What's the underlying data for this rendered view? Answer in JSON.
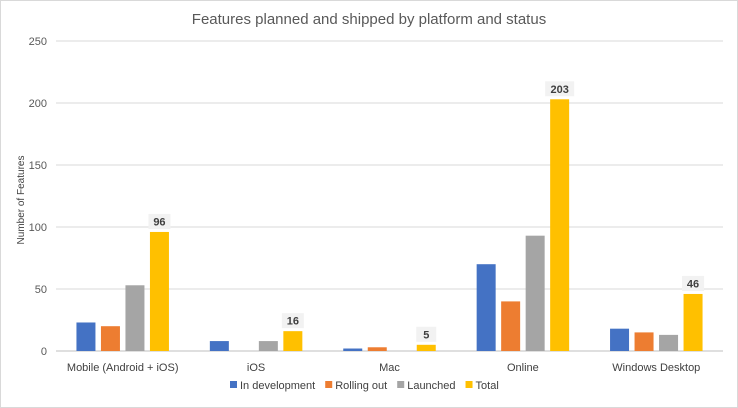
{
  "chart_data": {
    "type": "bar",
    "title": "Features planned and shipped by platform and status",
    "xlabel": "",
    "ylabel": "Number of Features",
    "ylim": [
      0,
      250
    ],
    "yticks": [
      0,
      50,
      100,
      150,
      200,
      250
    ],
    "grid": true,
    "legend_position": "bottom",
    "categories": [
      "Mobile (Android + iOS)",
      "iOS",
      "Mac",
      "Online",
      "Windows Desktop"
    ],
    "series": [
      {
        "name": "In development",
        "color": "#4472c4",
        "values": [
          23,
          8,
          2,
          70,
          18
        ]
      },
      {
        "name": "Rolling out",
        "color": "#ed7d31",
        "values": [
          20,
          0,
          3,
          40,
          15
        ]
      },
      {
        "name": "Launched",
        "color": "#a5a5a5",
        "values": [
          53,
          8,
          0,
          93,
          13
        ]
      },
      {
        "name": "Total",
        "color": "#ffc000",
        "values": [
          96,
          16,
          5,
          203,
          46
        ]
      }
    ],
    "data_labels": {
      "series": "Total",
      "values": [
        "96",
        "16",
        "5",
        "203",
        "46"
      ]
    }
  }
}
